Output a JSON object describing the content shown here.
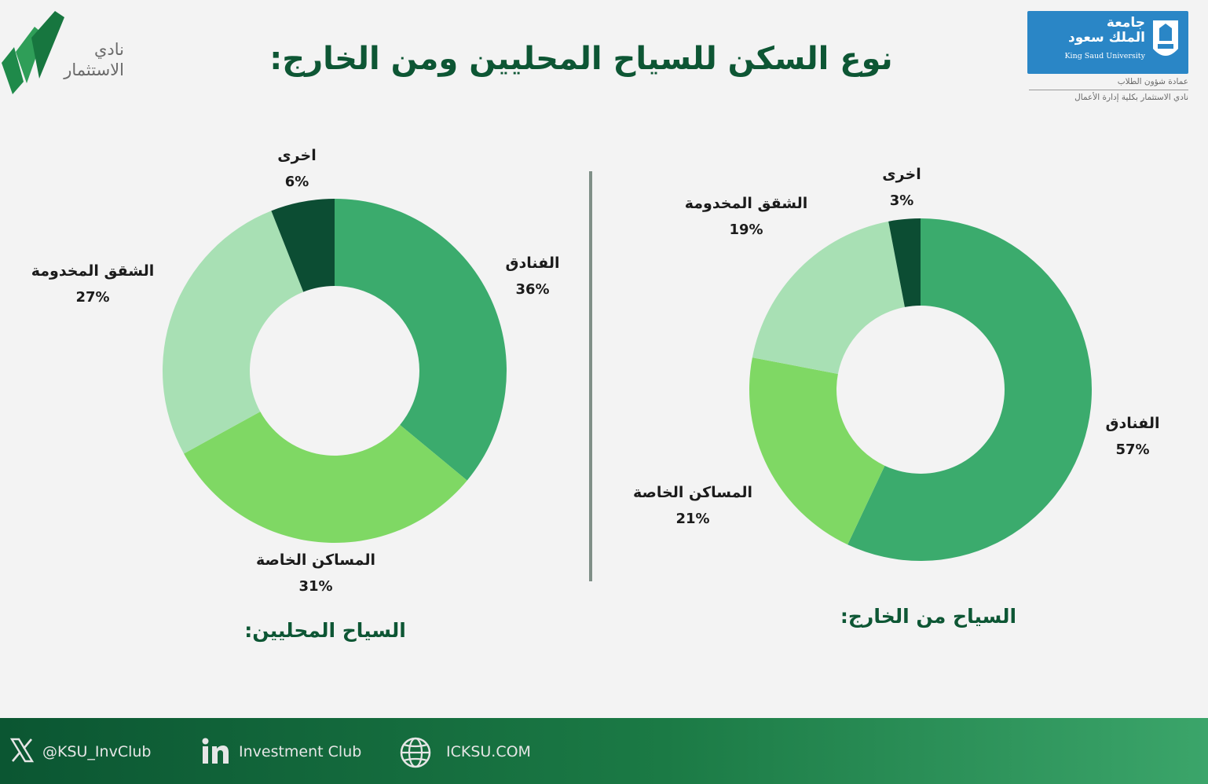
{
  "header": {
    "title": "نوع السكن للسياح المحليين ومن الخارج:",
    "club_logo_text": "نادي\nالاستثمار",
    "university": {
      "name_ar": "جامعة\nالملك سعود",
      "name_en": "King Saud University",
      "deanship": "عمادة شؤون الطلاب",
      "club_line": "نادي الاستثمار بكلية إدارة الأعمال"
    }
  },
  "colors": {
    "background": "#f3f3f3",
    "title": "#0d5634",
    "hotels": "#3bab6d",
    "private_homes": "#7fd864",
    "serviced_apartments": "#a8e0b4",
    "other": "#0c4d33"
  },
  "chart_data": [
    {
      "type": "pie",
      "donut": true,
      "title": "السياح المحليين:",
      "slices": [
        {
          "label": "الفنادق",
          "value": 36,
          "display": "36%",
          "color": "#3bab6d"
        },
        {
          "label": "المساكن الخاصة",
          "value": 31,
          "display": "31%",
          "color": "#7fd864"
        },
        {
          "label": "الشقق المخدومة",
          "value": 27,
          "display": "27%",
          "color": "#a8e0b4"
        },
        {
          "label": "اخرى",
          "value": 6,
          "display": "6%",
          "color": "#0c4d33"
        }
      ]
    },
    {
      "type": "pie",
      "donut": true,
      "title": "السياح من الخارج:",
      "slices": [
        {
          "label": "الفنادق",
          "value": 57,
          "display": "57%",
          "color": "#3bab6d"
        },
        {
          "label": "المساكن الخاصة",
          "value": 21,
          "display": "21%",
          "color": "#7fd864"
        },
        {
          "label": "الشقق المخدومة",
          "value": 19,
          "display": "19%",
          "color": "#a8e0b4"
        },
        {
          "label": "اخرى",
          "value": 3,
          "display": "3%",
          "color": "#0c4d33"
        }
      ]
    }
  ],
  "footer": {
    "twitter": {
      "icon": "x-icon",
      "handle": "@KSU_InvClub"
    },
    "linkedin": {
      "icon": "linkedin-icon",
      "text": "Investment Club"
    },
    "website": {
      "icon": "globe-icon",
      "text": "ICKSU.COM"
    }
  }
}
